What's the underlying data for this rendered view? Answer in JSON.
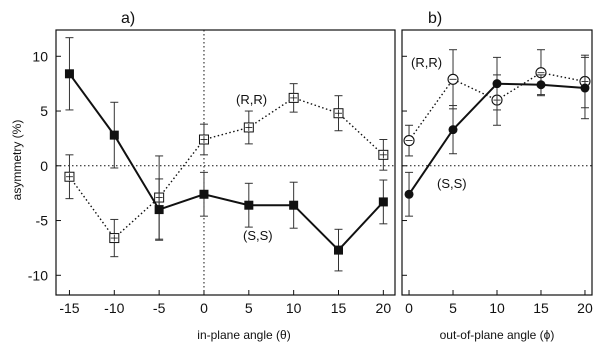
{
  "chart_data": [
    {
      "type": "line",
      "panel_label": "a)",
      "xlabel": "in-plane angle (θ)",
      "ylabel": "asymmetry (%)",
      "x": [
        -15,
        -10,
        -5,
        0,
        5,
        10,
        15,
        20
      ],
      "xticks": [
        "-15",
        "-10",
        "-5",
        "0",
        "5",
        "10",
        "15",
        "20"
      ],
      "yticks": [
        "10",
        "5",
        "0",
        "-5",
        "-10"
      ],
      "xlim": [
        -16.5,
        21.3
      ],
      "ylim": [
        -11.8,
        12.4
      ],
      "series": [
        {
          "name": "(R,R)",
          "marker": "open-square",
          "line": "dotted",
          "values": [
            -1.0,
            -6.6,
            -2.9,
            2.4,
            3.5,
            6.2,
            4.8,
            1.0
          ],
          "errors": [
            2.0,
            1.7,
            3.8,
            1.4,
            1.5,
            1.3,
            1.6,
            1.4
          ]
        },
        {
          "name": "(S,S)",
          "marker": "filled-square",
          "line": "solid",
          "values": [
            8.4,
            2.8,
            -4.0,
            -2.6,
            -3.6,
            -3.6,
            -7.7,
            -3.3
          ],
          "errors": [
            3.3,
            3.0,
            2.8,
            2.0,
            2.0,
            2.1,
            1.9,
            2.0
          ]
        }
      ],
      "annotations": [
        "(R,R)",
        "(S,S)"
      ],
      "reference_lines": [
        "y = 0 dotted",
        "x = 0 dotted"
      ]
    },
    {
      "type": "line",
      "panel_label": "b)",
      "xlabel": "out-of-plane angle (ϕ)",
      "x": [
        0,
        5,
        10,
        15,
        20
      ],
      "xticks": [
        "0",
        "5",
        "10",
        "15",
        "20"
      ],
      "xlim": [
        -0.8,
        20.8
      ],
      "ylim": [
        -11.8,
        12.4
      ],
      "series": [
        {
          "name": "(R,R)",
          "marker": "open-circle",
          "line": "dotted",
          "values": [
            2.3,
            7.9,
            6.0,
            8.5,
            7.7
          ],
          "errors": [
            1.4,
            2.7,
            2.3,
            2.1,
            2.4
          ]
        },
        {
          "name": "(S,S)",
          "marker": "filled-circle",
          "line": "solid",
          "values": [
            -2.6,
            3.3,
            7.5,
            7.4,
            7.1
          ],
          "errors": [
            2.0,
            2.2,
            2.4,
            0.9,
            2.8
          ]
        }
      ],
      "annotations": [
        "(R,R)",
        "(S,S)"
      ],
      "reference_lines": [
        "y = 0 dotted"
      ]
    }
  ]
}
